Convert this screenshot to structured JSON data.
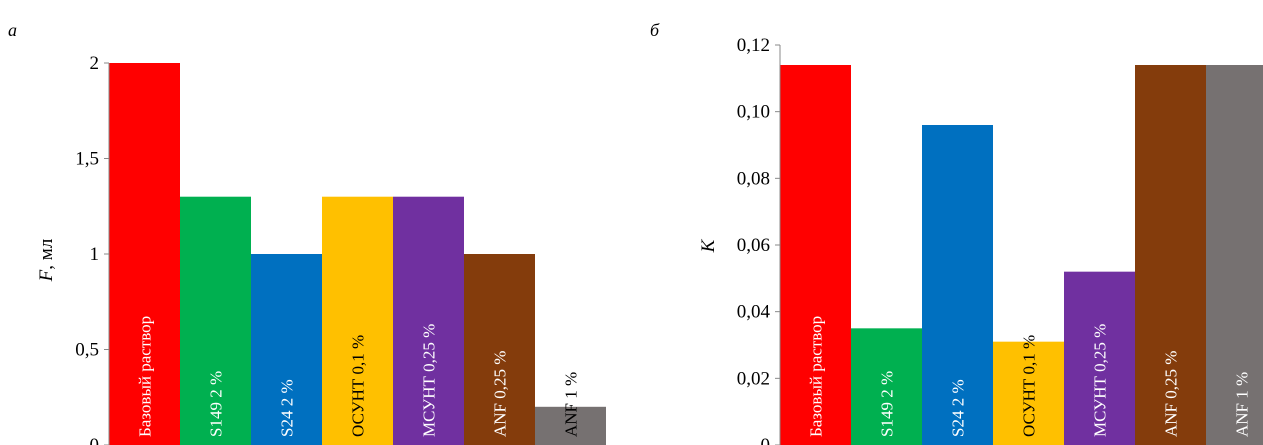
{
  "chart_data": [
    {
      "type": "bar",
      "panel_label": "а",
      "ylabel_var": "F",
      "ylabel_unit": ", мл",
      "ylim": [
        0,
        2
      ],
      "yticks": [
        0,
        0.5,
        1,
        1.5,
        2
      ],
      "ytick_labels": [
        "0",
        "0,5",
        "1",
        "1,5",
        "2"
      ],
      "grid": false,
      "categories": [
        "Базовый раствор",
        "S149 2 %",
        "S24 2 %",
        "ОСУНТ 0,1 %",
        "МСУНТ 0,25 %",
        "ANF 0,25 %",
        "ANF 1 %"
      ],
      "values": [
        2.0,
        1.3,
        1.0,
        1.3,
        1.3,
        1.0,
        0.2
      ],
      "colors": [
        "#ff0000",
        "#00b050",
        "#0070c0",
        "#ffc000",
        "#7030a0",
        "#843c0c",
        "#767171"
      ],
      "label_colors": [
        "#ffffff",
        "#ffffff",
        "#ffffff",
        "#000000",
        "#ffffff",
        "#ffffff",
        "#000000"
      ]
    },
    {
      "type": "bar",
      "panel_label": "б",
      "ylabel_var": "K",
      "ylabel_unit": "",
      "ylim": [
        0,
        0.12
      ],
      "yticks": [
        0,
        0.02,
        0.04,
        0.06,
        0.08,
        0.1,
        0.12
      ],
      "ytick_labels": [
        "0",
        "0,02",
        "0,04",
        "0,06",
        "0,08",
        "0,10",
        "0,12"
      ],
      "grid": false,
      "categories": [
        "Базовый раствор",
        "S149 2 %",
        "S24 2 %",
        "ОСУНТ 0,1 %",
        "МСУНТ 0,25 %",
        "ANF 0,25 %",
        "ANF 1 %"
      ],
      "values": [
        0.114,
        0.035,
        0.096,
        0.031,
        0.052,
        0.114,
        0.114
      ],
      "colors": [
        "#ff0000",
        "#00b050",
        "#0070c0",
        "#ffc000",
        "#7030a0",
        "#843c0c",
        "#767171"
      ],
      "label_colors": [
        "#ffffff",
        "#ffffff",
        "#ffffff",
        "#000000",
        "#ffffff",
        "#ffffff",
        "#ffffff"
      ]
    }
  ]
}
